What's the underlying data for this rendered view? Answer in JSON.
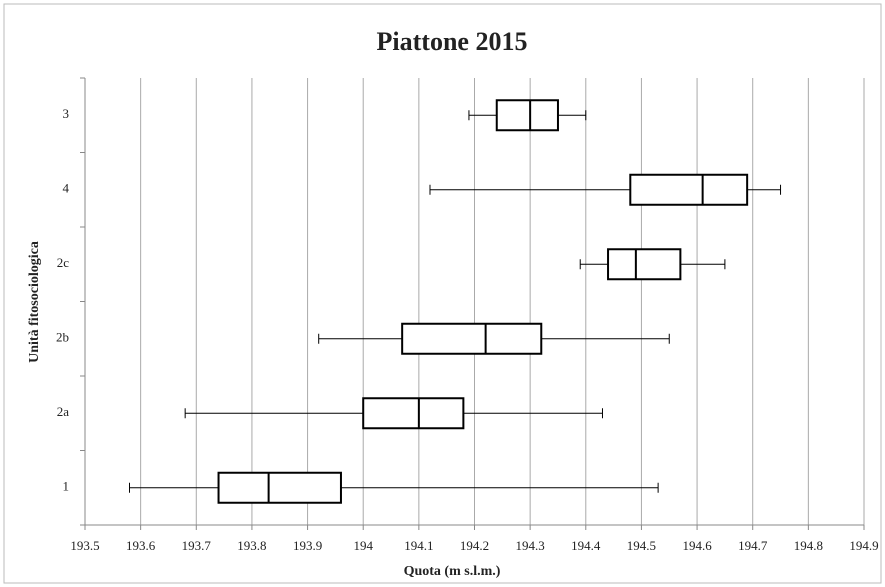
{
  "chart_data": {
    "type": "box",
    "title": "Piattone 2015",
    "xlabel": "Quota (m s.l.m.)",
    "ylabel": "Unità fitosociologica",
    "categories": [
      "3",
      "4",
      "2c",
      "2b",
      "2a",
      "1"
    ],
    "min": [
      194.19,
      194.12,
      194.39,
      193.92,
      193.68,
      193.58
    ],
    "q1": [
      194.24,
      194.48,
      194.44,
      194.07,
      194.0,
      193.74
    ],
    "median": [
      194.3,
      194.61,
      194.49,
      194.22,
      194.1,
      193.83
    ],
    "q3": [
      194.35,
      194.69,
      194.57,
      194.32,
      194.18,
      193.96
    ],
    "max": [
      194.4,
      194.75,
      194.65,
      194.55,
      194.43,
      194.53
    ],
    "color": "#000000",
    "xlim": [
      193.5,
      194.9
    ],
    "xticks": [
      193.5,
      193.6,
      193.7,
      193.8,
      193.9,
      194,
      194.1,
      194.2,
      194.3,
      194.4,
      194.5,
      194.6,
      194.7,
      194.8,
      194.9
    ],
    "grid": true
  }
}
